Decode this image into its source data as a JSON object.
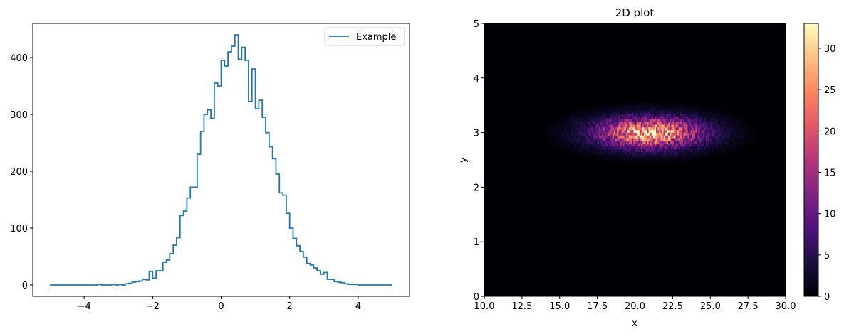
{
  "chart_data": [
    {
      "type": "line",
      "step": true,
      "title": "",
      "xlabel": "",
      "ylabel": "",
      "xlim": [
        -5.5,
        5.5
      ],
      "ylim": [
        -20,
        460
      ],
      "xticks": [
        -4,
        -2,
        0,
        2,
        4
      ],
      "xtick_labels": [
        "−4",
        "−2",
        "0",
        "2",
        "4"
      ],
      "yticks": [
        0,
        100,
        200,
        300,
        400
      ],
      "ytick_labels": [
        "0",
        "100",
        "200",
        "300",
        "400"
      ],
      "legend": {
        "placement": "top-right",
        "entries": [
          "Example"
        ]
      },
      "grid": false,
      "color": "#1f77b4",
      "series": [
        {
          "name": "Example",
          "bin_edges_range": [
            -5,
            5
          ],
          "bin_count": 100,
          "counts": [
            0,
            0,
            0,
            0,
            0,
            0,
            0,
            0,
            0,
            0,
            0,
            0,
            0,
            0,
            1,
            0,
            0,
            0,
            1,
            0,
            1,
            0,
            2,
            3,
            5,
            6,
            7,
            10,
            9,
            24,
            12,
            25,
            25,
            40,
            44,
            55,
            70,
            83,
            122,
            130,
            153,
            172,
            172,
            230,
            270,
            300,
            308,
            293,
            355,
            350,
            395,
            385,
            410,
            420,
            440,
            397,
            418,
            395,
            323,
            380,
            310,
            325,
            295,
            268,
            243,
            222,
            195,
            162,
            158,
            126,
            100,
            82,
            69,
            59,
            49,
            38,
            35,
            30,
            25,
            19,
            22,
            10,
            10,
            6,
            5,
            4,
            2,
            1,
            1,
            1,
            0,
            0,
            0,
            0,
            0,
            0,
            0,
            0,
            0,
            0
          ]
        }
      ]
    },
    {
      "type": "heatmap",
      "title": "2D plot",
      "xlabel": "x",
      "ylabel": "y",
      "xlim": [
        10,
        30
      ],
      "ylim": [
        0,
        5
      ],
      "xticks": [
        10,
        12.5,
        15,
        17.5,
        20,
        22.5,
        25,
        27.5,
        30
      ],
      "xtick_labels": [
        "10.0",
        "12.5",
        "15.0",
        "17.5",
        "20.0",
        "22.5",
        "25.0",
        "27.5",
        "30.0"
      ],
      "yticks": [
        0,
        1,
        2,
        3,
        4,
        5
      ],
      "ytick_labels": [
        "0",
        "1",
        "2",
        "3",
        "4",
        "5"
      ],
      "colormap": "magma",
      "colorbar": {
        "range": [
          0,
          33
        ],
        "ticks": [
          0,
          5,
          10,
          15,
          20,
          25,
          30
        ],
        "tick_labels": [
          "0",
          "5",
          "10",
          "15",
          "20",
          "25",
          "30"
        ]
      },
      "distribution": {
        "kind": "gaussian",
        "center": [
          21,
          3
        ],
        "sigma": [
          2.5,
          0.2
        ],
        "peak_count": 33
      },
      "grid": false
    }
  ]
}
